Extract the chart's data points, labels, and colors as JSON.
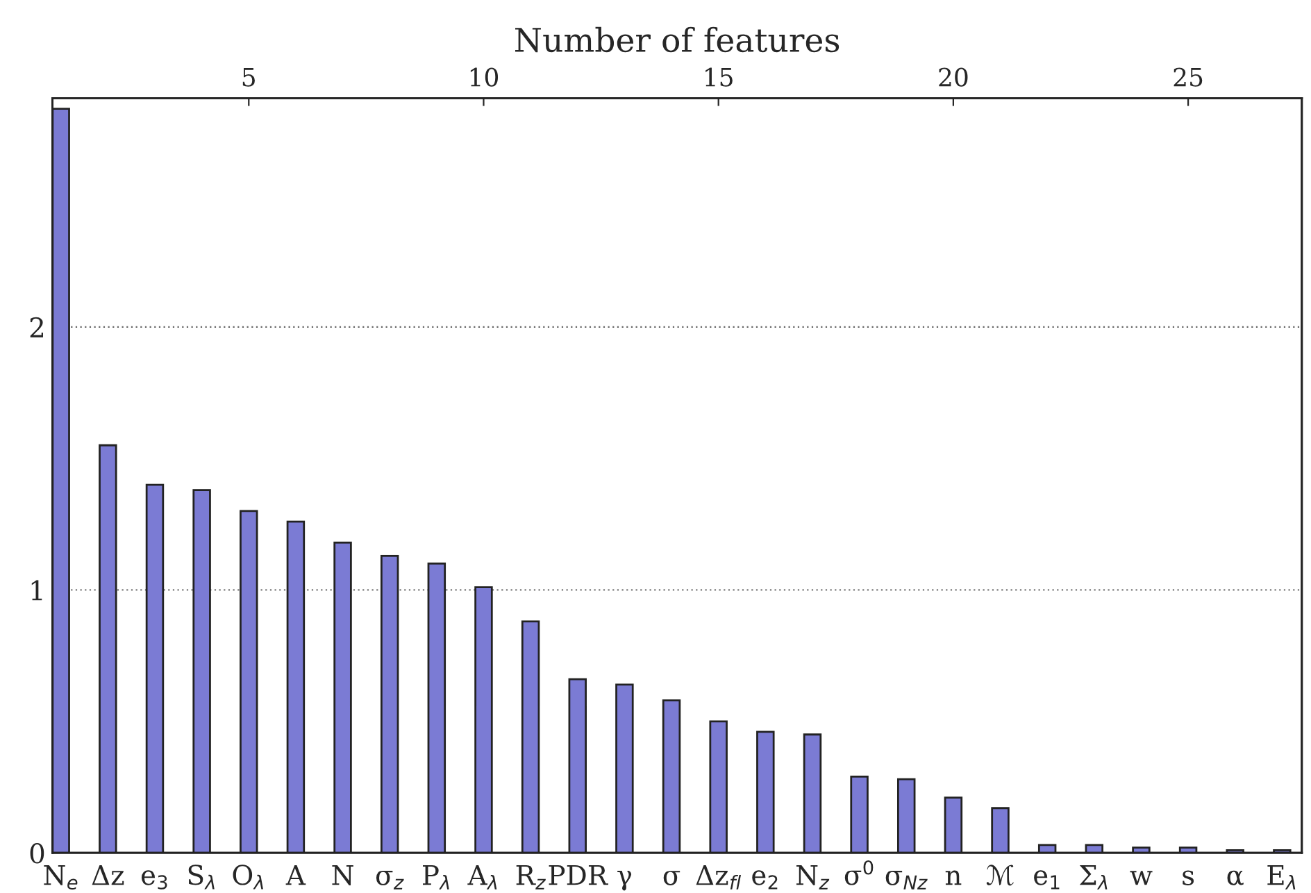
{
  "chart_data": {
    "type": "bar",
    "x2label": "Number of features",
    "categories": [
      "N$_{e}$",
      "Δz",
      "e$_{3}$",
      "S$_{λ}$",
      "O$_{λ}$",
      "A",
      "N",
      "σ$_{z}$",
      "P$_{λ}$",
      "A$_{λ}$",
      "R$_{z}$",
      "PDR",
      "γ",
      "σ",
      "Δz$_{fl}$",
      "e$_{2}$",
      "N$_{z}$",
      "σ$^{0}$",
      "σ$_{Nz}$",
      "n",
      "ℳ",
      "e$_{1}$",
      "Σ$_{λ}$",
      "w",
      "s",
      "α",
      "E$_{λ}$"
    ],
    "values": [
      2.83,
      1.55,
      1.4,
      1.38,
      1.3,
      1.26,
      1.18,
      1.13,
      1.1,
      1.01,
      0.88,
      0.66,
      0.64,
      0.58,
      0.5,
      0.46,
      0.45,
      0.29,
      0.28,
      0.21,
      0.17,
      0.03,
      0.03,
      0.02,
      0.02,
      0.01,
      0.01
    ],
    "color": "#7b7bd4",
    "ylim": [
      0,
      2.87
    ],
    "yticks": [
      0,
      1,
      2
    ],
    "x2lim": [
      0.82,
      27.42
    ],
    "x2ticks": [
      5,
      10,
      15,
      20,
      25
    ],
    "grid": "y",
    "legend": false
  }
}
